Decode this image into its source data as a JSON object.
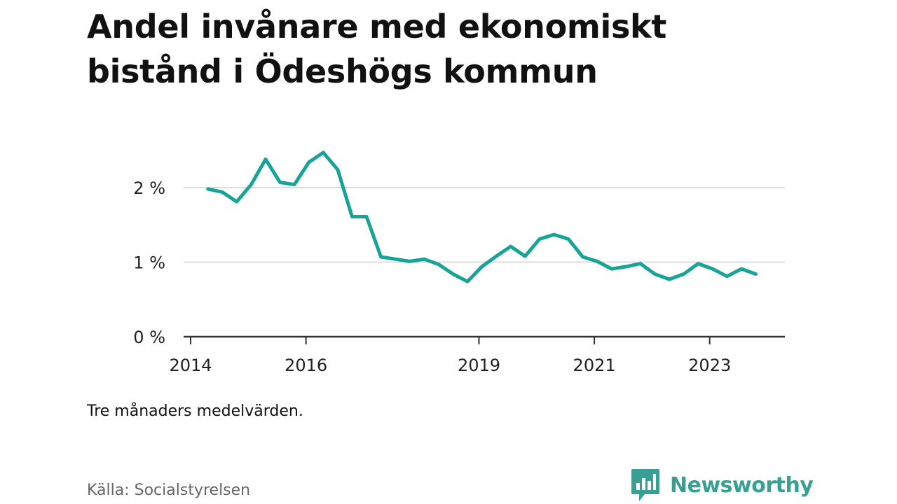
{
  "title": "Andel invånare med ekonomiskt bistånd i Ödeshögs kommun",
  "note": "Tre månaders medelvärden.",
  "source": "Källa: Socialstyrelsen",
  "brand": {
    "name": "Newsworthy",
    "logo_icon": "chart-speech-bubble-icon",
    "color": "#37a092"
  },
  "chart_data": {
    "type": "line",
    "title": "Andel invånare med ekonomiskt bistånd i Ödeshögs kommun",
    "xlabel": "",
    "ylabel": "",
    "x_tick_labels": [
      "2014",
      "2016",
      "2019",
      "2021",
      "2023"
    ],
    "y_tick_labels": [
      "0 %",
      "1 %",
      "2 %"
    ],
    "x_ticks": [
      2014,
      2016,
      2019,
      2021,
      2023
    ],
    "y_ticks": [
      0,
      1,
      2
    ],
    "ylim": [
      0,
      2.6
    ],
    "xlim": [
      2014,
      2024.3
    ],
    "grid": "horizontal",
    "line_color": "#17a398",
    "series": [
      {
        "x": [
          2014.3,
          2014.55,
          2014.8,
          2015.05,
          2015.3,
          2015.55,
          2015.8,
          2016.05,
          2016.3,
          2016.55,
          2016.8,
          2017.05,
          2017.3,
          2017.55,
          2017.8,
          2018.05,
          2018.3,
          2018.55,
          2018.8,
          2019.05,
          2019.3,
          2019.55,
          2019.8,
          2020.05,
          2020.3,
          2020.55,
          2020.8,
          2021.05,
          2021.3,
          2021.55,
          2021.8,
          2022.05,
          2022.3,
          2022.55,
          2022.8,
          2023.05,
          2023.3,
          2023.55,
          2023.8
        ],
        "values": [
          1.98,
          1.94,
          1.81,
          2.04,
          2.38,
          2.07,
          2.04,
          2.34,
          2.47,
          2.24,
          1.61,
          1.61,
          1.07,
          1.04,
          1.01,
          1.04,
          0.97,
          0.84,
          0.74,
          0.94,
          1.08,
          1.21,
          1.08,
          1.31,
          1.37,
          1.31,
          1.07,
          1.01,
          0.91,
          0.94,
          0.98,
          0.84,
          0.77,
          0.84,
          0.98,
          0.91,
          0.81,
          0.91,
          0.84
        ]
      }
    ]
  }
}
